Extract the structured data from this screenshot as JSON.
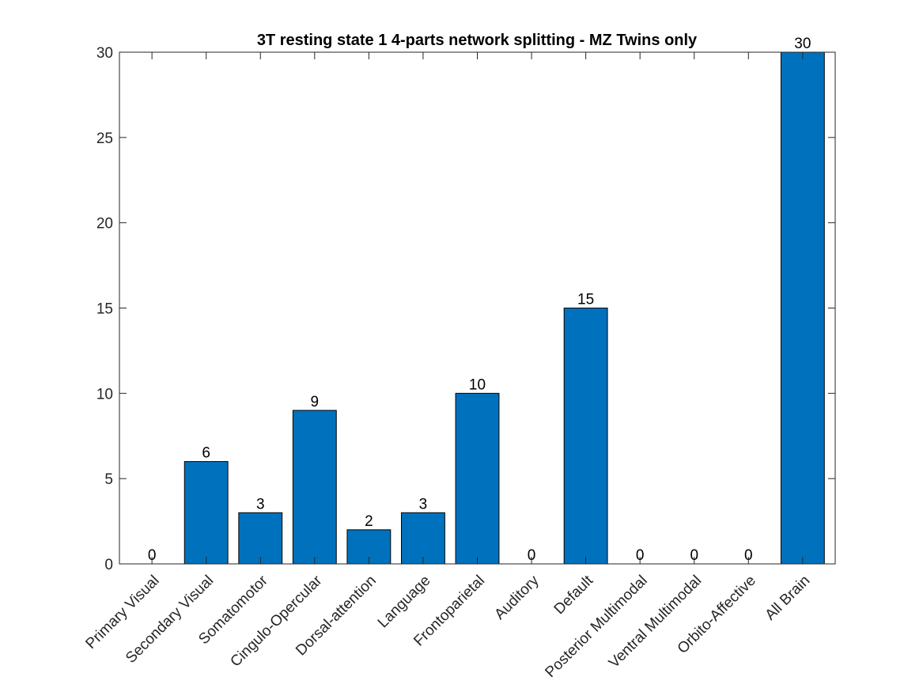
{
  "chart_data": {
    "type": "bar",
    "title": "3T resting state 1 4-parts network splitting - MZ Twins only",
    "xlabel": "",
    "ylabel": "",
    "categories": [
      "Primary Visual",
      "Secondary Visual",
      "Somatomotor",
      "Cingulo-Opercular",
      "Dorsal-attention",
      "Language",
      "Frontoparietal",
      "Auditory",
      "Default",
      "Posterior Multimodal",
      "Ventral Multimodal",
      "Orbito-Affective",
      "All Brain"
    ],
    "values": [
      0,
      6,
      3,
      9,
      2,
      3,
      10,
      0,
      15,
      0,
      0,
      0,
      30
    ],
    "ylim": [
      0,
      30
    ],
    "yticks": [
      0,
      5,
      10,
      15,
      20,
      25,
      30
    ],
    "grid": false,
    "bar_color": "#0072BD",
    "data_labels": true
  }
}
